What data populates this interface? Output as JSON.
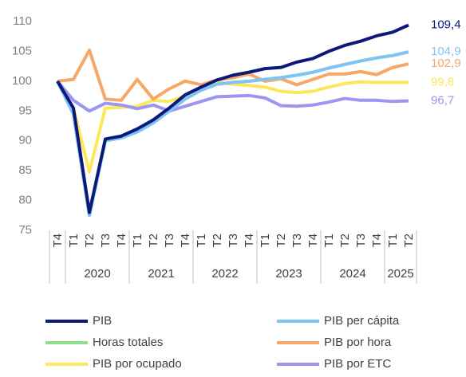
{
  "chart_data": {
    "type": "line",
    "categories": [
      {
        "quarter": "T4",
        "year": null
      },
      {
        "quarter": "T1",
        "year": "2020"
      },
      {
        "quarter": "T2",
        "year": "2020"
      },
      {
        "quarter": "T3",
        "year": "2020"
      },
      {
        "quarter": "T4",
        "year": "2020"
      },
      {
        "quarter": "T1",
        "year": "2021"
      },
      {
        "quarter": "T2",
        "year": "2021"
      },
      {
        "quarter": "T3",
        "year": "2021"
      },
      {
        "quarter": "T4",
        "year": "2021"
      },
      {
        "quarter": "T1",
        "year": "2022"
      },
      {
        "quarter": "T2",
        "year": "2022"
      },
      {
        "quarter": "T3",
        "year": "2022"
      },
      {
        "quarter": "T4",
        "year": "2022"
      },
      {
        "quarter": "T1",
        "year": "2023"
      },
      {
        "quarter": "T2",
        "year": "2023"
      },
      {
        "quarter": "T3",
        "year": "2023"
      },
      {
        "quarter": "T4",
        "year": "2023"
      },
      {
        "quarter": "T1",
        "year": "2024"
      },
      {
        "quarter": "T2",
        "year": "2024"
      },
      {
        "quarter": "T3",
        "year": "2024"
      },
      {
        "quarter": "T4",
        "year": "2024"
      },
      {
        "quarter": "T1",
        "year": "2025"
      },
      {
        "quarter": "T2",
        "year": "2025"
      }
    ],
    "ylim": [
      75,
      110
    ],
    "yticks": [
      75,
      80,
      85,
      90,
      95,
      100,
      105,
      110
    ],
    "series": [
      {
        "name": "Horas totales",
        "color": "#8ee08e",
        "values": [
          100,
          94.5,
          77.5,
          90,
          90.5,
          91.5,
          93,
          95,
          97,
          98.5,
          99.5,
          99.8,
          100,
          100.3,
          100.6,
          101,
          101.5,
          102.2,
          102.8,
          103.4,
          103.9,
          104.3,
          104.9
        ]
      },
      {
        "name": "PIB por ocupado",
        "color": "#fbe85c",
        "end_label": "99,8",
        "values": [
          100,
          95.5,
          84.8,
          95.5,
          95.6,
          95.8,
          96.8,
          96.6,
          97.5,
          98.5,
          99.8,
          99.5,
          99.3,
          99,
          98.3,
          98.1,
          98.3,
          99,
          99.6,
          99.9,
          99.8,
          99.8,
          99.8
        ]
      },
      {
        "name": "PIB por hora",
        "color": "#f7a766",
        "end_label": "102,9",
        "values": [
          100,
          100.3,
          105.2,
          97,
          96.8,
          100.3,
          97,
          98.7,
          100,
          99.4,
          100.2,
          100.6,
          101.2,
          100,
          100.4,
          99.4,
          100.3,
          101.2,
          101.2,
          101.6,
          101.1,
          102.3,
          102.9
        ]
      },
      {
        "name": "PIB por ETC",
        "color": "#9b96f2",
        "end_label": "96,7",
        "values": [
          100,
          96.8,
          95,
          96.3,
          96,
          95.4,
          96,
          95,
          95.8,
          96.6,
          97.4,
          97.5,
          97.6,
          97.2,
          95.9,
          95.8,
          96,
          96.5,
          97.1,
          96.8,
          96.8,
          96.6,
          96.7
        ]
      },
      {
        "name": "PIB per cápita",
        "color": "#7fc4f5",
        "end_label": "104,9",
        "values": [
          100,
          94.5,
          77.5,
          90,
          90.5,
          91.5,
          93,
          95,
          97,
          98.5,
          99.5,
          99.8,
          100,
          100.3,
          100.6,
          101,
          101.5,
          102.2,
          102.8,
          103.4,
          103.9,
          104.3,
          104.9
        ]
      },
      {
        "name": "PIB",
        "color": "#0b1a7a",
        "end_label": "109,4",
        "values": [
          100,
          95.5,
          78,
          90.3,
          90.8,
          92,
          93.5,
          95.5,
          97.7,
          99,
          100.2,
          101,
          101.5,
          102.1,
          102.3,
          103.2,
          103.8,
          105,
          106,
          106.7,
          107.6,
          108.2,
          109.4
        ]
      }
    ],
    "legend_order": [
      "PIB",
      "PIB per cápita",
      "Horas totales",
      "PIB por hora",
      "PIB por ocupado",
      "PIB por ETC"
    ]
  }
}
